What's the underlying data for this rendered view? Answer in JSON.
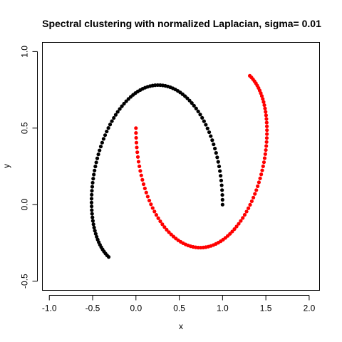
{
  "chart_data": {
    "type": "scatter",
    "title": "Spectral clustering with normalized Laplacian, sigma= 0.01",
    "xlabel": "x",
    "ylabel": "y",
    "xlim": [
      -1.08,
      2.12
    ],
    "ylim": [
      -0.56,
      1.06
    ],
    "x_ticks": [
      -1.0,
      -0.5,
      0.0,
      0.5,
      1.0,
      1.5,
      2.0
    ],
    "x_tick_labels": [
      "-1.0",
      "-0.5",
      "0.0",
      "0.5",
      "1.0",
      "1.5",
      "2.0"
    ],
    "y_ticks": [
      -0.5,
      0.0,
      0.5,
      1.0
    ],
    "y_tick_labels": [
      "-0.5",
      "0.0",
      "0.5",
      "1.0"
    ],
    "grid": false,
    "series": [
      {
        "color": "#000000",
        "x": [
          1.0,
          0.9994,
          0.9975,
          0.9944,
          0.99,
          0.9844,
          0.9776,
          0.9696,
          0.9603,
          0.9499,
          0.9383,
          0.9255,
          0.9117,
          0.8967,
          0.8807,
          0.8637,
          0.8457,
          0.8267,
          0.8068,
          0.7861,
          0.7645,
          0.7421,
          0.7189,
          0.6951,
          0.6705,
          0.6453,
          0.6195,
          0.5932,
          0.5664,
          0.5391,
          0.5114,
          0.4834,
          0.455,
          0.4264,
          0.3975,
          0.3685,
          0.3394,
          0.3101,
          0.2808,
          0.2515,
          0.2222,
          0.193,
          0.1639,
          0.135,
          0.1062,
          0.0777,
          0.0495,
          0.0216,
          -0.0059,
          -0.033,
          -0.0598,
          -0.0862,
          -0.1121,
          -0.1375,
          -0.1623,
          -0.1866,
          -0.2104,
          -0.2334,
          -0.2558,
          -0.2774,
          -0.2983,
          -0.3183,
          -0.3376,
          -0.3559,
          -0.3734,
          -0.39,
          -0.4056,
          -0.4202,
          -0.4338,
          -0.4464,
          -0.458,
          -0.4685,
          -0.478,
          -0.4863,
          -0.4935,
          -0.4996,
          -0.5045,
          -0.5083,
          -0.5109,
          -0.5123,
          -0.5126,
          -0.5117,
          -0.5097,
          -0.5066,
          -0.5023,
          -0.4969,
          -0.4904,
          -0.4827,
          -0.474,
          -0.4643,
          -0.4535,
          -0.4417,
          -0.4289,
          -0.4152,
          -0.4006,
          -0.385,
          -0.3686,
          -0.3514,
          -0.3334,
          -0.3146
        ],
        "y": [
          0.0,
          0.0317,
          0.0634,
          0.095,
          0.1264,
          0.1577,
          0.1887,
          0.2194,
          0.2497,
          0.2796,
          0.309,
          0.3379,
          0.3663,
          0.394,
          0.4211,
          0.4475,
          0.4731,
          0.4979,
          0.522,
          0.5451,
          0.5673,
          0.5886,
          0.6089,
          0.6282,
          0.6465,
          0.6637,
          0.6798,
          0.6948,
          0.7087,
          0.7214,
          0.7329,
          0.7432,
          0.7523,
          0.7601,
          0.7667,
          0.7721,
          0.7762,
          0.779,
          0.7806,
          0.781,
          0.7801,
          0.7779,
          0.7745,
          0.7699,
          0.764,
          0.757,
          0.7487,
          0.7393,
          0.7288,
          0.7171,
          0.7043,
          0.6905,
          0.6756,
          0.6597,
          0.6428,
          0.625,
          0.6063,
          0.5868,
          0.5664,
          0.5453,
          0.5234,
          0.5009,
          0.4777,
          0.454,
          0.4297,
          0.405,
          0.3798,
          0.3543,
          0.3284,
          0.3023,
          0.276,
          0.2495,
          0.223,
          0.1964,
          0.1698,
          0.1433,
          0.1169,
          0.0907,
          0.0647,
          0.039,
          0.0136,
          -0.0114,
          -0.0359,
          -0.0599,
          -0.0834,
          -0.1062,
          -0.1284,
          -0.1499,
          -0.1707,
          -0.1907,
          -0.2099,
          -0.2283,
          -0.2458,
          -0.2624,
          -0.2781,
          -0.2928,
          -0.3066,
          -0.3194,
          -0.3312,
          -0.3419
        ]
      },
      {
        "color": "#ff0000",
        "x": [
          0.0,
          0.0006,
          0.0025,
          0.0056,
          0.01,
          0.0156,
          0.0224,
          0.0304,
          0.0397,
          0.0501,
          0.0617,
          0.0745,
          0.0883,
          0.1033,
          0.1193,
          0.1363,
          0.1543,
          0.1733,
          0.1932,
          0.2139,
          0.2355,
          0.2579,
          0.2811,
          0.3049,
          0.3295,
          0.3547,
          0.3805,
          0.4068,
          0.4336,
          0.4609,
          0.4886,
          0.5166,
          0.545,
          0.5736,
          0.6025,
          0.6315,
          0.6606,
          0.6899,
          0.7192,
          0.7485,
          0.7778,
          0.807,
          0.8361,
          0.865,
          0.8938,
          0.9223,
          0.9505,
          0.9784,
          1.0059,
          1.033,
          1.0598,
          1.0862,
          1.1121,
          1.1375,
          1.1623,
          1.1866,
          1.2104,
          1.2334,
          1.2558,
          1.2774,
          1.2983,
          1.3183,
          1.3376,
          1.3559,
          1.3734,
          1.39,
          1.4056,
          1.4202,
          1.4338,
          1.4464,
          1.458,
          1.4685,
          1.478,
          1.4863,
          1.4935,
          1.4996,
          1.5045,
          1.5083,
          1.5109,
          1.5123,
          1.5126,
          1.5117,
          1.5097,
          1.5066,
          1.5023,
          1.4969,
          1.4904,
          1.4827,
          1.474,
          1.4643,
          1.4535,
          1.4417,
          1.4289,
          1.4152,
          1.4006,
          1.385,
          1.3686,
          1.3514,
          1.3334,
          1.3146
        ],
        "y": [
          0.5,
          0.4683,
          0.4366,
          0.405,
          0.3736,
          0.3423,
          0.3113,
          0.2806,
          0.2503,
          0.2204,
          0.191,
          0.1621,
          0.1337,
          0.106,
          0.0789,
          0.0525,
          0.0269,
          0.0021,
          -0.022,
          -0.0451,
          -0.0673,
          -0.0886,
          -0.1089,
          -0.1282,
          -0.1465,
          -0.1637,
          -0.1798,
          -0.1948,
          -0.2087,
          -0.2214,
          -0.2329,
          -0.2432,
          -0.2523,
          -0.2601,
          -0.2667,
          -0.2721,
          -0.2762,
          -0.279,
          -0.2806,
          -0.281,
          -0.2801,
          -0.2779,
          -0.2745,
          -0.2699,
          -0.264,
          -0.257,
          -0.2487,
          -0.2393,
          -0.2288,
          -0.2171,
          -0.2043,
          -0.1905,
          -0.1756,
          -0.1597,
          -0.1428,
          -0.125,
          -0.1063,
          -0.0868,
          -0.0664,
          -0.0453,
          -0.0234,
          -0.0009,
          0.0223,
          0.046,
          0.0703,
          0.095,
          0.1202,
          0.1457,
          0.1716,
          0.1977,
          0.224,
          0.2505,
          0.277,
          0.3036,
          0.3302,
          0.3567,
          0.3831,
          0.4093,
          0.4353,
          0.461,
          0.4864,
          0.5114,
          0.5359,
          0.5599,
          0.5834,
          0.6062,
          0.6284,
          0.6499,
          0.6707,
          0.6907,
          0.7099,
          0.7283,
          0.7458,
          0.7624,
          0.7781,
          0.7928,
          0.8066,
          0.8194,
          0.8312,
          0.8419
        ]
      }
    ]
  }
}
